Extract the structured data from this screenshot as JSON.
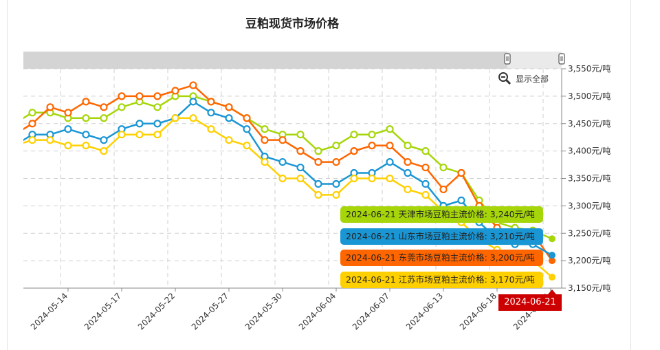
{
  "window": {
    "top_buttons": [
      {
        "name": "top-button-1",
        "color": "#f4f4f4"
      },
      {
        "name": "top-button-2",
        "color": "#d83a2e"
      },
      {
        "name": "top-button-3",
        "color": "#f4f4f4"
      }
    ]
  },
  "chart": {
    "title": "豆粕现货市场价格",
    "show_all_label": "显示全部",
    "y_ticks": [
      "3,550元/吨",
      "3,500元/吨",
      "3,450元/吨",
      "3,400元/吨",
      "3,350元/吨",
      "3,300元/吨",
      "3,250元/吨",
      "3,200元/吨",
      "3,150元/吨"
    ],
    "x_ticks": [
      "2024-05-14",
      "2024-05-17",
      "2024-05-22",
      "2024-05-27",
      "2024-05-30",
      "2024-06-04",
      "2024-06-07",
      "2024-06-13",
      "2024-06-18",
      "2024-06-21"
    ],
    "crosshair_date": "2024-06-21",
    "tooltips": [
      {
        "text": "2024-06-21 天津市场豆粕主流价格: 3,240元/吨",
        "color": "#a6d60a"
      },
      {
        "text": "2024-06-21 山东市场豆粕主流价格: 3,210元/吨",
        "color": "#1a96d4"
      },
      {
        "text": "2024-06-21 东莞市场豆粕主流价格: 3,200元/吨",
        "color": "#ff6600"
      },
      {
        "text": "2024-06-21 江苏市场豆粕主流价格: 3,170元/吨",
        "color": "#ffd000"
      }
    ]
  },
  "chart_data": {
    "type": "line",
    "title": "豆粕现货市场价格",
    "xlabel": "",
    "ylabel": "元/吨",
    "ylim": [
      3150,
      3550
    ],
    "grid": true,
    "x_tick_labels": [
      "2024-05-14",
      "2024-05-17",
      "2024-05-22",
      "2024-05-27",
      "2024-05-30",
      "2024-06-04",
      "2024-06-07",
      "2024-06-13",
      "2024-06-18",
      "2024-06-21"
    ],
    "series": [
      {
        "name": "天津市场豆粕主流价格",
        "color": "#a6d60a",
        "values": [
          3450,
          3470,
          3470,
          3460,
          3460,
          3460,
          3480,
          3490,
          3480,
          3500,
          3500,
          3490,
          3480,
          3460,
          3440,
          3430,
          3430,
          3400,
          3410,
          3430,
          3430,
          3440,
          3410,
          3400,
          3370,
          3360,
          3310,
          3270,
          3260,
          3255,
          3240
        ]
      },
      {
        "name": "东莞市场豆粕主流价格",
        "color": "#ff6600",
        "values": [
          3430,
          3450,
          3480,
          3470,
          3490,
          3480,
          3500,
          3500,
          3500,
          3510,
          3520,
          3490,
          3480,
          3460,
          3420,
          3420,
          3400,
          3380,
          3380,
          3400,
          3410,
          3410,
          3380,
          3370,
          3330,
          3360,
          3300,
          3260,
          3250,
          3250,
          3200
        ]
      },
      {
        "name": "山东市场豆粕主流价格",
        "color": "#1a96d4",
        "values": [
          3410,
          3430,
          3430,
          3440,
          3430,
          3420,
          3440,
          3450,
          3450,
          3460,
          3490,
          3470,
          3460,
          3440,
          3390,
          3380,
          3370,
          3340,
          3340,
          3360,
          3360,
          3380,
          3360,
          3340,
          3300,
          3310,
          3270,
          3240,
          3230,
          3230,
          3210
        ]
      },
      {
        "name": "江苏市场豆粕主流价格",
        "color": "#ffd000",
        "values": [
          3410,
          3420,
          3420,
          3410,
          3410,
          3400,
          3430,
          3430,
          3430,
          3460,
          3460,
          3440,
          3420,
          3410,
          3380,
          3350,
          3350,
          3320,
          3320,
          3350,
          3350,
          3350,
          3330,
          3320,
          3290,
          3270,
          3240,
          3220,
          3210,
          3200,
          3170
        ]
      }
    ],
    "last_values": {
      "天津": 3240,
      "山东": 3210,
      "东莞": 3200,
      "江苏": 3170
    }
  }
}
